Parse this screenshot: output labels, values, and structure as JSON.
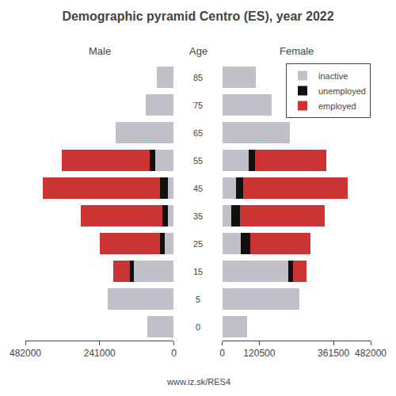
{
  "title": "Demographic pyramid Centro (ES), year 2022",
  "annotations": [
    "www.iz.sk/RES4"
  ],
  "chart_data": [
    {
      "type": "bar",
      "orientation": "horizontal",
      "stacked": true,
      "title": "Male",
      "ylabel": "Age",
      "categories": [
        "85",
        "75",
        "65",
        "55",
        "45",
        "35",
        "25",
        "15",
        "5",
        "0"
      ],
      "series": [
        {
          "name": "inactive",
          "color": "#bfc0c8",
          "values": [
            55000,
            90000,
            190000,
            60000,
            20000,
            20000,
            30000,
            130000,
            215000,
            85000
          ]
        },
        {
          "name": "unemployed",
          "color": "#111111",
          "values": [
            0,
            0,
            0,
            18000,
            25000,
            18000,
            15000,
            12000,
            0,
            0
          ]
        },
        {
          "name": "employed",
          "color": "#cc3333",
          "values": [
            0,
            0,
            0,
            285000,
            380000,
            265000,
            195000,
            55000,
            0,
            0
          ]
        }
      ],
      "xlim": [
        482000,
        0
      ],
      "xticks": [
        482000,
        241000,
        0
      ],
      "grid": false
    },
    {
      "type": "bar",
      "orientation": "horizontal",
      "stacked": true,
      "title": "Female",
      "categories": [
        "85",
        "75",
        "65",
        "55",
        "45",
        "35",
        "25",
        "15",
        "5",
        "0"
      ],
      "series": [
        {
          "name": "inactive",
          "color": "#bfc0c8",
          "values": [
            110000,
            160000,
            220000,
            85000,
            45000,
            30000,
            60000,
            215000,
            250000,
            80000
          ]
        },
        {
          "name": "unemployed",
          "color": "#111111",
          "values": [
            0,
            0,
            0,
            22000,
            22000,
            28000,
            32000,
            14000,
            0,
            0
          ]
        },
        {
          "name": "employed",
          "color": "#cc3333",
          "values": [
            0,
            0,
            0,
            230000,
            340000,
            275000,
            195000,
            45000,
            0,
            0
          ]
        }
      ],
      "xlim": [
        0,
        482000
      ],
      "xticks": [
        0,
        120500,
        361500,
        482000
      ],
      "grid": false,
      "legend": "upper right"
    }
  ]
}
